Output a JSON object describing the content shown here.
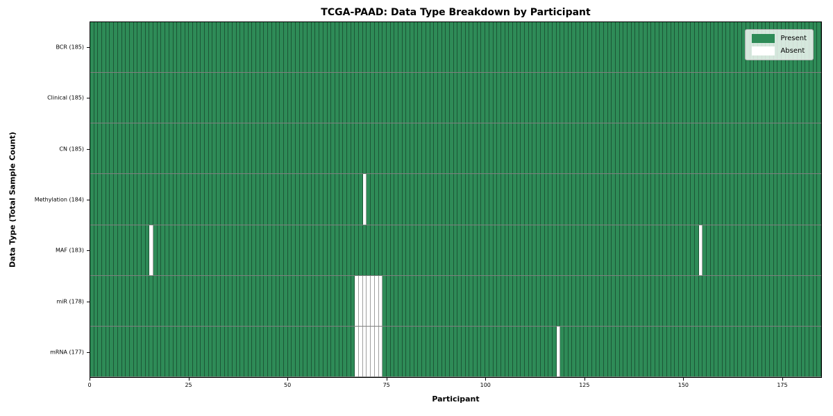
{
  "title": "TCGA-PAAD: Data Type Breakdown by Participant",
  "axis": {
    "xlabel": "Participant",
    "ylabel": "Data Type (Total Sample Count)"
  },
  "legend": {
    "present_label": "Present",
    "absent_label": "Absent"
  },
  "colors": {
    "present": "#2e8b57",
    "absent": "#ffffff",
    "grid": "rgba(0,0,0,0.38)",
    "row_separator": "rgba(0,0,0,0.5)",
    "spine": "#000000",
    "legend_bg": "rgba(255,255,255,0.8)"
  },
  "chart_data": {
    "type": "heatmap",
    "title": "TCGA-PAAD: Data Type Breakdown by Participant",
    "xlabel": "Participant",
    "ylabel": "Data Type (Total Sample Count)",
    "legend_entries": [
      "Present",
      "Absent"
    ],
    "n_participants": 185,
    "x_range": [
      0,
      185
    ],
    "x_ticks": [
      0,
      25,
      50,
      75,
      100,
      125,
      150,
      175
    ],
    "rows": [
      {
        "name": "BCR",
        "label": "BCR (185)",
        "total_samples": 185,
        "absent_participants": []
      },
      {
        "name": "Clinical",
        "label": "Clinical (185)",
        "total_samples": 185,
        "absent_participants": []
      },
      {
        "name": "CN",
        "label": "CN (185)",
        "total_samples": 185,
        "absent_participants": []
      },
      {
        "name": "Methylation",
        "label": "Methylation (184)",
        "total_samples": 184,
        "absent_participants": [
          69
        ]
      },
      {
        "name": "MAF",
        "label": "MAF (183)",
        "total_samples": 183,
        "absent_participants": [
          15,
          154
        ]
      },
      {
        "name": "miR",
        "label": "miR (178)",
        "total_samples": 178,
        "absent_participants": [
          67,
          68,
          69,
          70,
          71,
          72,
          73
        ]
      },
      {
        "name": "mRNA",
        "label": "mRNA (177)",
        "total_samples": 177,
        "absent_participants": [
          67,
          68,
          69,
          70,
          71,
          72,
          73,
          118
        ]
      }
    ]
  }
}
